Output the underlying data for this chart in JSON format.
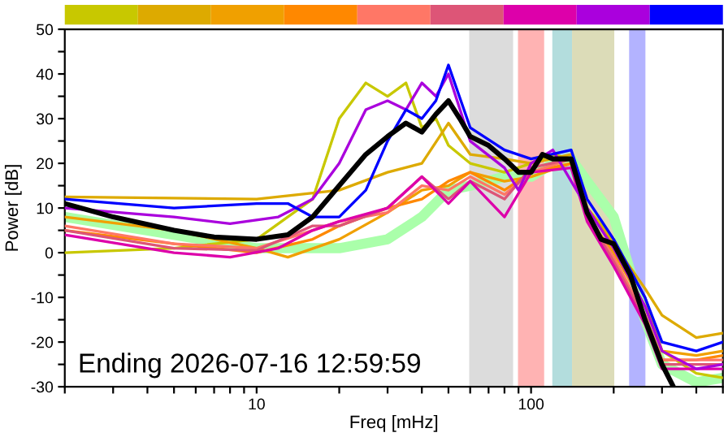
{
  "chart_data": {
    "type": "line",
    "xlabel": "Freq [mHz]",
    "ylabel": "Power [dB]",
    "log": "x",
    "legend": false,
    "grid": false,
    "xlim": [
      2,
      500
    ],
    "ylim": [
      -30,
      50
    ],
    "xticks": [
      {
        "value": 2,
        "label": null
      },
      {
        "value": 3,
        "label": null
      },
      {
        "value": 4,
        "label": null
      },
      {
        "value": 5,
        "label": null
      },
      {
        "value": 6,
        "label": null
      },
      {
        "value": 7,
        "label": null
      },
      {
        "value": 8,
        "label": null
      },
      {
        "value": 9,
        "label": null
      },
      10,
      {
        "value": 20,
        "label": null
      },
      {
        "value": 30,
        "label": null
      },
      {
        "value": 40,
        "label": null
      },
      {
        "value": 50,
        "label": null
      },
      {
        "value": 60,
        "label": null
      },
      {
        "value": 70,
        "label": null
      },
      {
        "value": 80,
        "label": null
      },
      {
        "value": 90,
        "label": null
      },
      100,
      {
        "value": 200,
        "label": null
      },
      {
        "value": 300,
        "label": null
      },
      {
        "value": 400,
        "label": null
      },
      {
        "value": 500,
        "label": null
      }
    ],
    "yticks": [
      -30,
      {
        "value": -25,
        "label": null
      },
      -20,
      {
        "value": -15,
        "label": null
      },
      -10,
      {
        "value": -5,
        "label": null
      },
      0,
      {
        "value": 5,
        "label": null
      },
      10,
      {
        "value": 15,
        "label": null
      },
      20,
      {
        "value": 25,
        "label": null
      },
      30,
      {
        "value": 35,
        "label": null
      },
      40,
      {
        "value": 45,
        "label": null
      },
      50
    ],
    "bands": [
      {
        "axis": "x",
        "from": 59.5,
        "to": 86,
        "color": "#dcdcdc"
      },
      {
        "axis": "x",
        "from": 89.6,
        "to": 111.6,
        "color": "#ffb3b3"
      },
      {
        "axis": "x",
        "from": 119.5,
        "to": 141,
        "color": "#b3dddd"
      },
      {
        "axis": "x",
        "from": 141,
        "to": 201,
        "color": "#dcdcb8"
      },
      {
        "axis": "x",
        "from": 227.6,
        "to": 261,
        "color": "#b3b3ff"
      }
    ],
    "series": [
      {
        "color": "#c8c800",
        "x": [
          2,
          5,
          10,
          16,
          20,
          25,
          30,
          35,
          40,
          45,
          50,
          60,
          80,
          100,
          120,
          140,
          160,
          200,
          260,
          300,
          400,
          500
        ],
        "values": [
          0,
          1,
          3,
          12,
          30,
          38,
          35,
          38,
          28,
          30,
          24,
          20,
          18,
          20,
          22,
          21,
          10,
          3,
          -10,
          -22,
          -27,
          -28
        ]
      },
      {
        "color": "#ddaa00",
        "x": [
          2,
          10,
          20,
          30,
          40,
          50,
          60,
          80,
          100,
          140,
          160,
          200,
          260,
          300,
          400,
          500
        ],
        "values": [
          12.5,
          12,
          14,
          18,
          20,
          29,
          22,
          21,
          20,
          22,
          10,
          2,
          -8,
          -14,
          -19,
          -18
        ]
      },
      {
        "color": "#f0a000",
        "x": [
          2,
          5,
          10,
          13,
          20,
          30,
          40,
          50,
          60,
          80,
          100,
          140,
          160,
          200,
          260,
          300,
          400,
          500
        ],
        "values": [
          8,
          5,
          1,
          -1,
          3,
          9,
          14,
          15,
          18,
          16,
          17,
          20,
          8,
          0,
          -12,
          -22,
          -23,
          -22
        ]
      },
      {
        "color": "#ff8800",
        "x": [
          2,
          5,
          10,
          16,
          20,
          30,
          40,
          50,
          60,
          80,
          100,
          140,
          160,
          200,
          260,
          300,
          400,
          500
        ],
        "values": [
          5,
          2,
          0,
          3,
          6,
          10,
          12,
          16,
          18,
          14,
          18,
          20,
          8,
          -2,
          -14,
          -24,
          -24,
          -23
        ]
      },
      {
        "color": "#ff7766",
        "x": [
          2,
          5,
          10,
          16,
          20,
          30,
          40,
          50,
          60,
          80,
          100,
          140,
          160,
          200,
          260,
          300,
          400,
          500
        ],
        "values": [
          6,
          2,
          1,
          5,
          7,
          9,
          15,
          14,
          17,
          13,
          18,
          21,
          8,
          -1,
          -14,
          -24,
          -24,
          -24
        ]
      },
      {
        "color": "#dd5577",
        "x": [
          2,
          5,
          10,
          16,
          20,
          30,
          40,
          50,
          60,
          80,
          100,
          140,
          160,
          200,
          260,
          300,
          400,
          500
        ],
        "values": [
          5,
          1,
          0.5,
          6,
          6,
          10,
          17,
          12,
          16,
          12,
          19,
          21,
          8,
          -2,
          -15,
          -25,
          -25,
          -25
        ]
      },
      {
        "color": "#dd00aa",
        "x": [
          2,
          5,
          8,
          12,
          16,
          20,
          30,
          40,
          50,
          60,
          80,
          100,
          140,
          160,
          200,
          260,
          300,
          400,
          500
        ],
        "values": [
          4,
          0,
          -1,
          1,
          5,
          7,
          10,
          17,
          11,
          16,
          8,
          18,
          19,
          7,
          -3,
          -16,
          -26,
          -26,
          -26
        ]
      },
      {
        "color": "#aa00dd",
        "x": [
          2,
          5,
          8,
          12,
          16,
          20,
          25,
          30,
          35,
          40,
          45,
          50,
          60,
          80,
          90,
          100,
          120,
          140,
          160,
          200,
          260,
          300,
          400,
          500
        ],
        "values": [
          10,
          8,
          6.5,
          8,
          12,
          20,
          32,
          34,
          32,
          38,
          35,
          40,
          25,
          19,
          14,
          20,
          23,
          16,
          10,
          1,
          -12,
          -22,
          -26,
          -25
        ]
      },
      {
        "color": "#0000ff",
        "x": [
          2,
          5,
          10,
          13,
          16,
          20,
          25,
          30,
          35,
          40,
          45,
          50,
          60,
          80,
          100,
          140,
          160,
          200,
          260,
          300,
          400,
          500
        ],
        "values": [
          12,
          10,
          11,
          11,
          8,
          8,
          14,
          25,
          32,
          30,
          34,
          42,
          28,
          23,
          21,
          23,
          12,
          3,
          -10,
          -20,
          -22,
          -20
        ]
      },
      {
        "color": "#aaffaa",
        "x": [
          2,
          5,
          10,
          20,
          30,
          40,
          50,
          60,
          80,
          100,
          120,
          140,
          160,
          200,
          260,
          300,
          400,
          500
        ],
        "values": [
          8,
          4,
          1,
          1,
          3,
          8,
          14,
          15,
          17,
          17,
          20,
          21,
          16,
          8,
          -15,
          -25,
          -29,
          -28
        ]
      },
      {
        "color": "#000000",
        "x": [
          2,
          3,
          5,
          7,
          10,
          13,
          16,
          20,
          25,
          30,
          35,
          40,
          45,
          50,
          55,
          60,
          70,
          80,
          90,
          100,
          110,
          120,
          140,
          160,
          180,
          200,
          230,
          260,
          300,
          330
        ],
        "values": [
          11,
          8,
          5,
          3.5,
          3,
          4,
          8,
          15,
          22,
          26,
          29,
          27,
          31,
          34,
          30,
          26,
          24,
          21,
          18,
          18,
          22,
          21,
          21,
          9,
          3,
          2,
          -5,
          -15,
          -25,
          -30
        ]
      }
    ],
    "annotations": [
      "Ending 2026-07-16 12:59:59"
    ]
  }
}
